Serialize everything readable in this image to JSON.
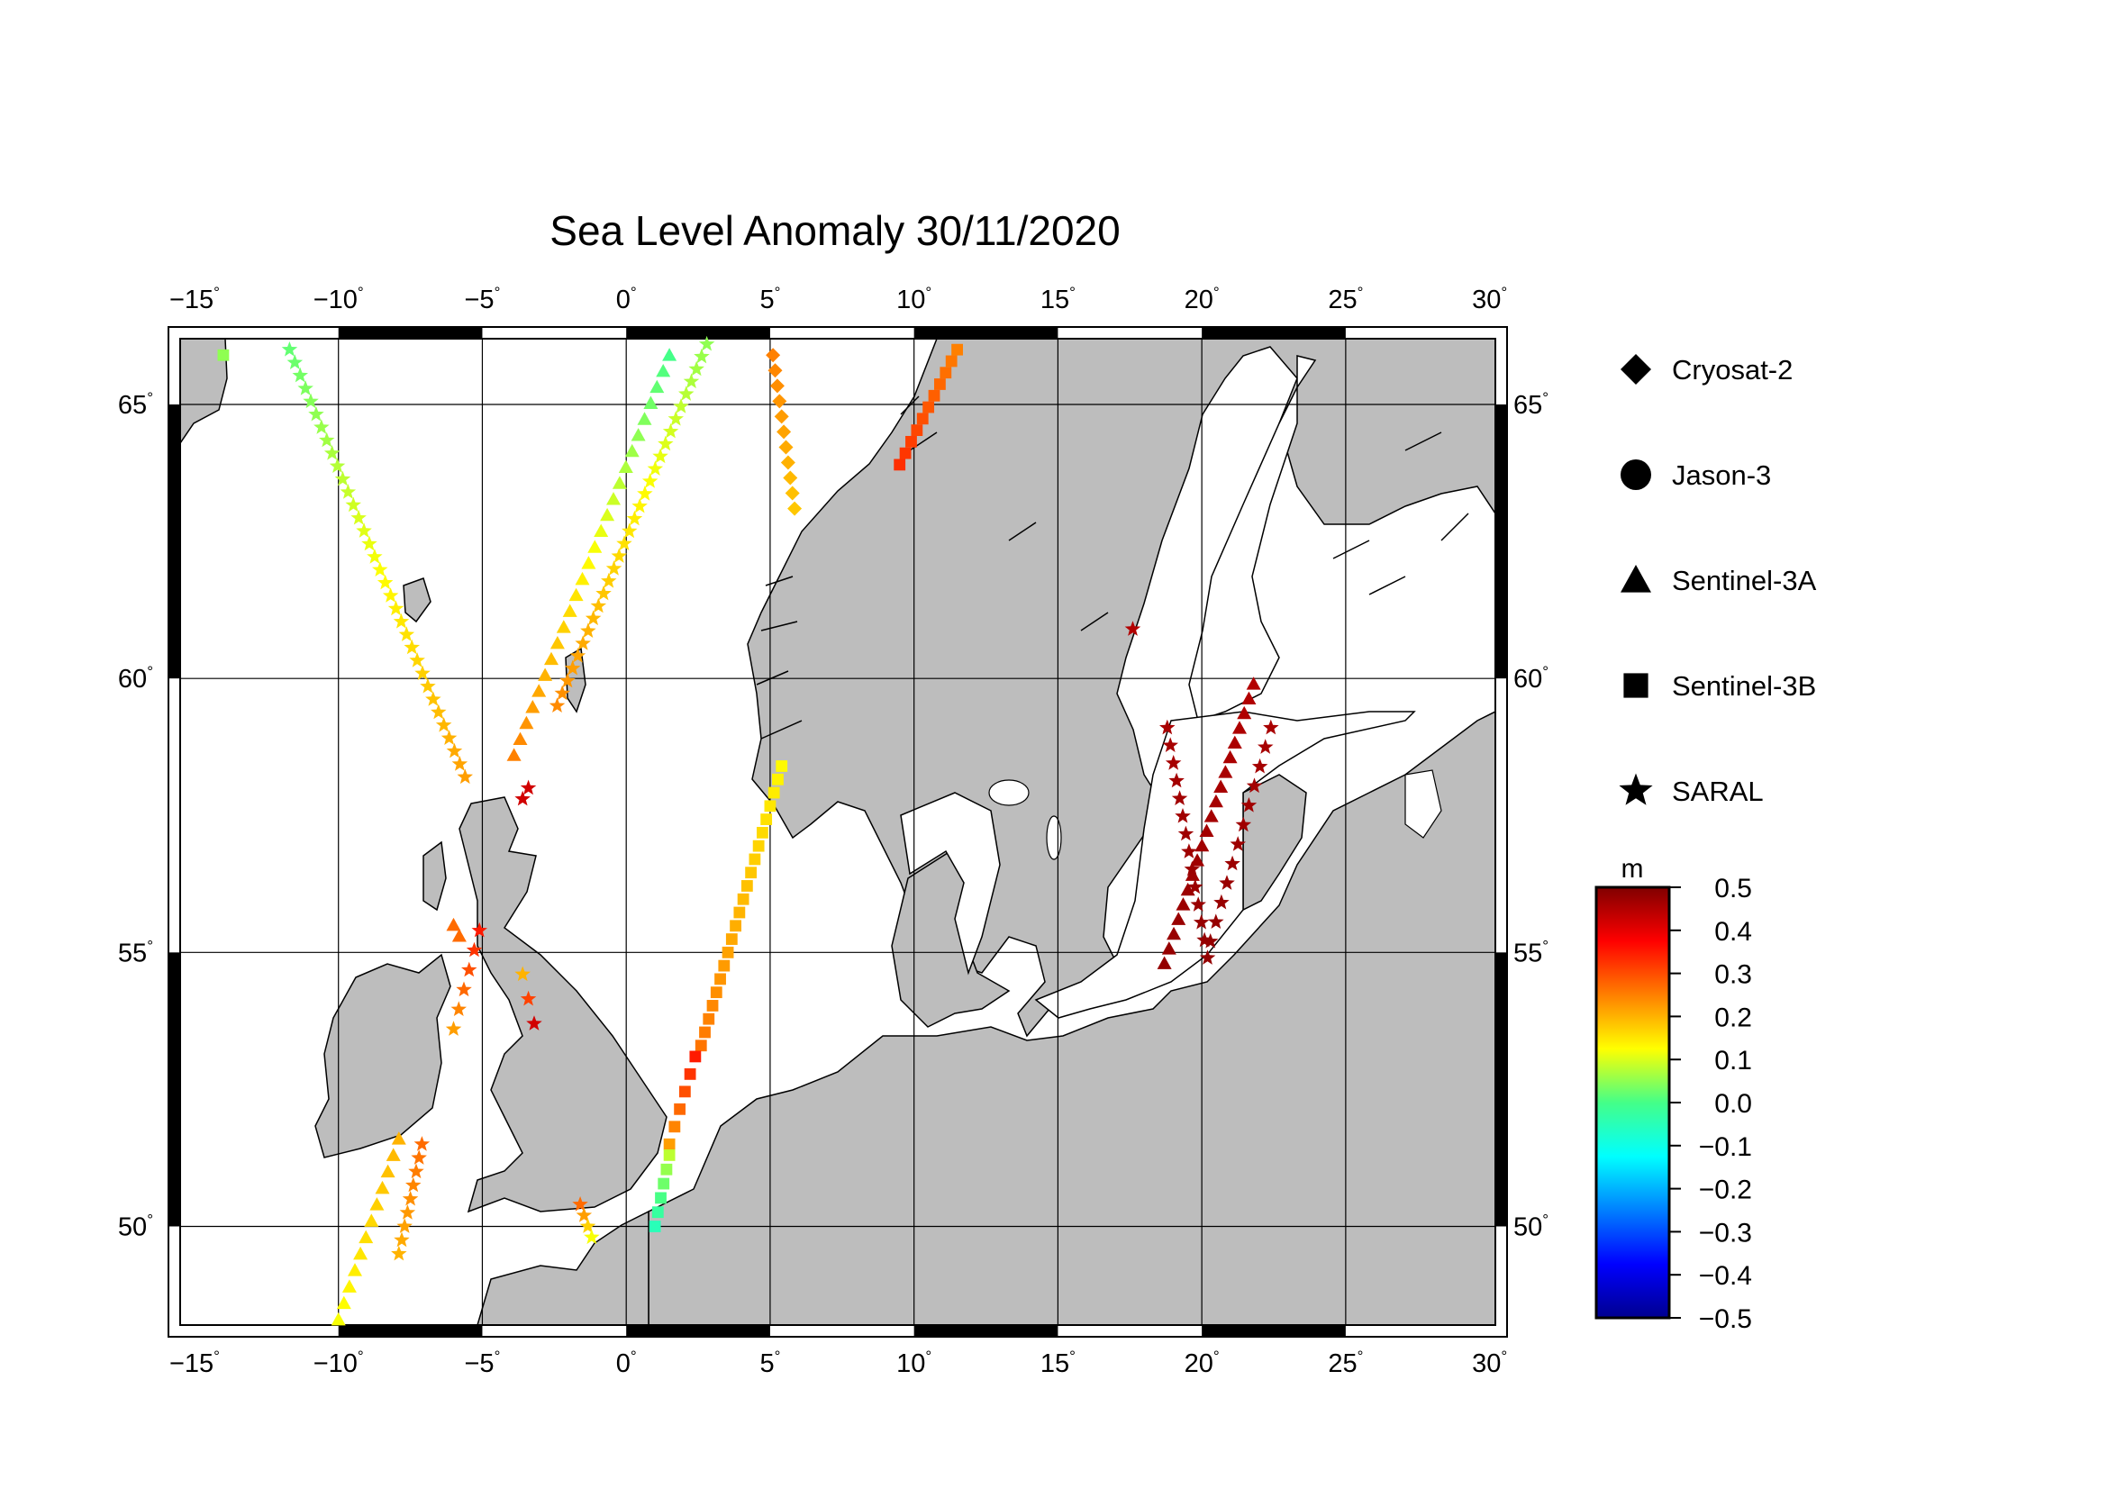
{
  "title": "Sea Level Anomaly 30/11/2020",
  "map": {
    "lon_ticks": [
      "-15",
      "-10",
      "-5",
      "0",
      "5",
      "10",
      "15",
      "20",
      "25",
      "30"
    ],
    "lat_ticks": [
      "50",
      "55",
      "60",
      "65"
    ],
    "degree_mark": "°",
    "land_color": "#bdbdbd",
    "sea_color": "#ffffff"
  },
  "legend": {
    "items": [
      {
        "name": "Cryosat-2",
        "symbol": "diamond-icon"
      },
      {
        "name": "Jason-3",
        "symbol": "circle-icon"
      },
      {
        "name": "Sentinel-3A",
        "symbol": "triangle-icon"
      },
      {
        "name": "Sentinel-3B",
        "symbol": "square-icon"
      },
      {
        "name": "SARAL",
        "symbol": "star-icon"
      }
    ]
  },
  "colorbar": {
    "unit": "m",
    "ticks": [
      "0.5",
      "0.4",
      "0.3",
      "0.2",
      "0.1",
      "0.0",
      "−0.1",
      "−0.2",
      "−0.3",
      "−0.4",
      "−0.5"
    ],
    "min": -0.5,
    "max": 0.5
  },
  "chart_data": {
    "type": "scatter",
    "title": "Sea Level Anomaly 30/11/2020",
    "xlim": [
      -15.5,
      30.2
    ],
    "ylim": [
      48.2,
      66.2
    ],
    "xlabel": "",
    "ylabel": "",
    "value_unit": "m",
    "color_range": [
      -0.5,
      0.5
    ],
    "tracks": [
      {
        "mission": "Cryosat-2",
        "lon0": 5.1,
        "lat0": 65.9,
        "lon1": 5.85,
        "lat1": 63.1,
        "n": 11,
        "v0": 0.25,
        "v1": 0.18
      },
      {
        "mission": "Sentinel-3A",
        "lon0": 1.5,
        "lat0": 65.9,
        "lon1": -3.9,
        "lat1": 58.6,
        "n": 26,
        "v0": 0.0,
        "v1": 0.25
      },
      {
        "mission": "Sentinel-3A",
        "lon0": -5.8,
        "lat0": 55.3,
        "lon1": -6.0,
        "lat1": 55.5,
        "n": 2,
        "v0": 0.27,
        "v1": 0.27
      },
      {
        "mission": "Sentinel-3A",
        "lon0": -7.9,
        "lat0": 51.6,
        "lon1": -10.0,
        "lat1": 48.3,
        "n": 12,
        "v0": 0.2,
        "v1": 0.12
      },
      {
        "mission": "Sentinel-3A",
        "lon0": 21.8,
        "lat0": 59.9,
        "lon1": 18.7,
        "lat1": 54.8,
        "n": 20,
        "v0": 0.45,
        "v1": 0.48
      },
      {
        "mission": "Sentinel-3B",
        "lon0": -14.0,
        "lat0": 65.9,
        "lon1": -14.0,
        "lat1": 65.9,
        "n": 1,
        "v0": 0.05,
        "v1": 0.05
      },
      {
        "mission": "Sentinel-3B",
        "lon0": 11.5,
        "lat0": 66.0,
        "lon1": 9.5,
        "lat1": 63.9,
        "n": 11,
        "v0": 0.25,
        "v1": 0.33
      },
      {
        "mission": "Sentinel-3B",
        "lon0": 5.4,
        "lat0": 58.4,
        "lon1": 2.6,
        "lat1": 53.3,
        "n": 22,
        "v0": 0.13,
        "v1": 0.26
      },
      {
        "mission": "Sentinel-3B",
        "lon0": 2.4,
        "lat0": 53.1,
        "lon1": 1.5,
        "lat1": 51.5,
        "n": 6,
        "v0": 0.35,
        "v1": 0.22
      },
      {
        "mission": "Sentinel-3B",
        "lon0": 1.5,
        "lat0": 51.3,
        "lon1": 1.0,
        "lat1": 50.0,
        "n": 6,
        "v0": 0.08,
        "v1": -0.05
      },
      {
        "mission": "SARAL",
        "lon0": -11.7,
        "lat0": 66.0,
        "lon1": -5.6,
        "lat1": 58.2,
        "n": 34,
        "v0": 0.02,
        "v1": 0.22
      },
      {
        "mission": "SARAL",
        "lon0": 2.8,
        "lat0": 66.1,
        "lon1": -2.4,
        "lat1": 59.5,
        "n": 30,
        "v0": 0.05,
        "v1": 0.24
      },
      {
        "mission": "SARAL",
        "lon0": -3.4,
        "lat0": 58.0,
        "lon1": -3.6,
        "lat1": 57.8,
        "n": 2,
        "v0": 0.42,
        "v1": 0.42
      },
      {
        "mission": "SARAL",
        "lon0": -5.1,
        "lat0": 55.4,
        "lon1": -6.0,
        "lat1": 53.6,
        "n": 6,
        "v0": 0.35,
        "v1": 0.22
      },
      {
        "mission": "SARAL",
        "lon0": -3.6,
        "lat0": 54.6,
        "lon1": -3.2,
        "lat1": 53.7,
        "n": 3,
        "v0": 0.2,
        "v1": 0.42
      },
      {
        "mission": "SARAL",
        "lon0": -7.1,
        "lat0": 51.5,
        "lon1": -7.9,
        "lat1": 49.5,
        "n": 9,
        "v0": 0.27,
        "v1": 0.2
      },
      {
        "mission": "SARAL",
        "lon0": -1.6,
        "lat0": 50.4,
        "lon1": -1.2,
        "lat1": 49.8,
        "n": 4,
        "v0": 0.27,
        "v1": 0.12
      },
      {
        "mission": "SARAL",
        "lon0": 17.6,
        "lat0": 60.9,
        "lon1": 17.6,
        "lat1": 60.9,
        "n": 1,
        "v0": 0.45,
        "v1": 0.45
      },
      {
        "mission": "SARAL",
        "lon0": 18.8,
        "lat0": 59.1,
        "lon1": 20.2,
        "lat1": 54.9,
        "n": 14,
        "v0": 0.46,
        "v1": 0.48
      },
      {
        "mission": "SARAL",
        "lon0": 22.4,
        "lat0": 59.1,
        "lon1": 20.3,
        "lat1": 55.2,
        "n": 12,
        "v0": 0.46,
        "v1": 0.48
      }
    ]
  }
}
